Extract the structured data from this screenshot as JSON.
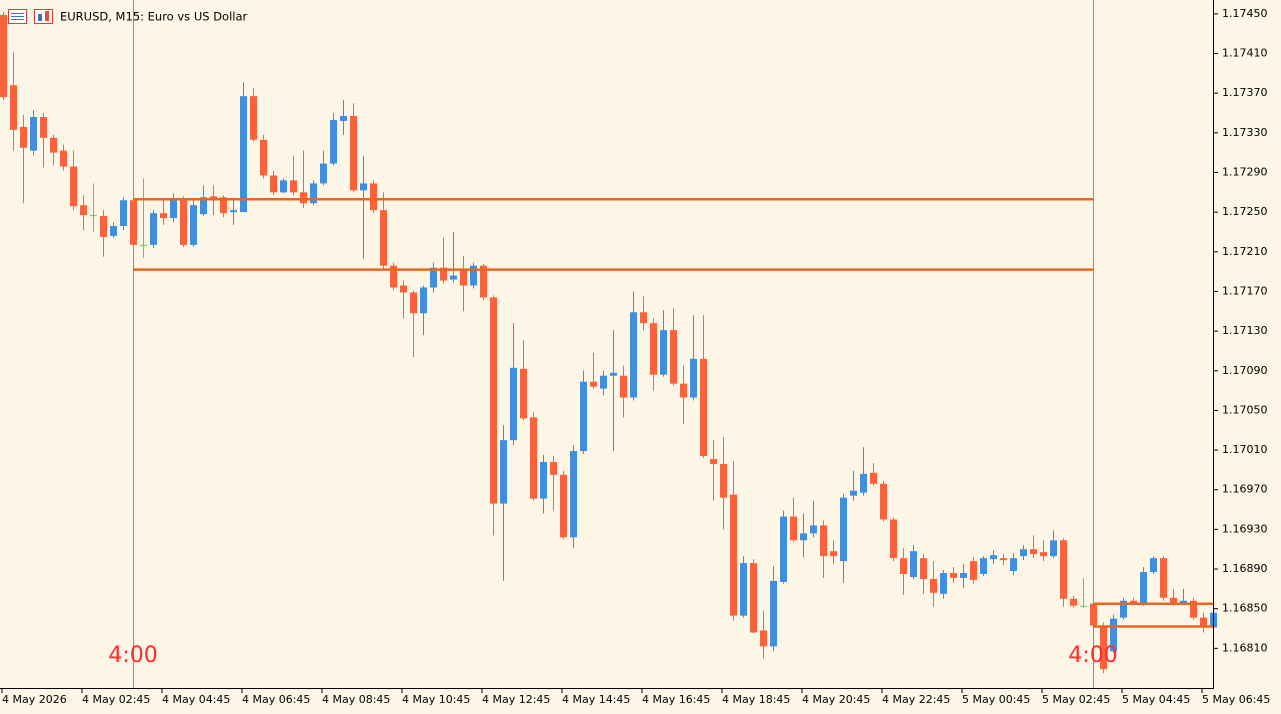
{
  "chart_data": {
    "type": "candlestick",
    "title": "EURUSD, M15:  Euro vs US Dollar",
    "open": [
      1.17449,
      1.17378,
      1.17336,
      1.17312,
      1.17346,
      1.17325,
      1.17312,
      1.17296,
      1.17257,
      1.17247,
      1.17246,
      1.17226,
      1.17236,
      1.17262,
      1.17217,
      1.17217,
      1.17249,
      1.17244,
      1.17262,
      1.17217,
      1.17248,
      1.17266,
      1.17265,
      1.1725,
      1.1725,
      1.17367,
      1.17323,
      1.17287,
      1.1727,
      1.17282,
      1.1727,
      1.17259,
      1.17279,
      1.17299,
      1.17342,
      1.17347,
      1.17272,
      1.17279,
      1.17252,
      1.17196,
      1.17176,
      1.17169,
      1.17148,
      1.17174,
      1.17194,
      1.17182,
      1.17192,
      1.17176,
      1.17196,
      1.17164,
      1.16956,
      1.1702,
      1.17092,
      1.17043,
      1.16961,
      1.16998,
      1.16985,
      1.16922,
      1.17009,
      1.17079,
      1.17072,
      1.17085,
      1.17085,
      1.17063,
      1.17149,
      1.17138,
      1.17086,
      1.17131,
      1.17077,
      1.17063,
      1.17102,
      1.17001,
      1.16996,
      1.16965,
      1.16843,
      1.16896,
      1.16828,
      1.16812,
      1.16877,
      1.16943,
      1.16919,
      1.16926,
      1.16934,
      1.16908,
      1.16898,
      1.16964,
      1.16967,
      1.16987,
      1.16976,
      1.1694,
      1.16901,
      1.16882,
      1.16901,
      1.1688,
      1.16865,
      1.16886,
      1.16881,
      1.16898,
      1.16885,
      1.169,
      1.16901,
      1.16888,
      1.16903,
      1.1691,
      1.16907,
      1.16903,
      1.16919,
      1.1686,
      1.16853,
      1.16855,
      1.16833,
      1.16807,
      1.16841,
      1.16858,
      1.16856,
      1.16887,
      1.16901,
      1.16861,
      1.16856,
      1.16858,
      1.16841,
      1.16831
    ],
    "high": [
      1.17452,
      1.17411,
      1.17348,
      1.17353,
      1.1735,
      1.17328,
      1.17318,
      1.17312,
      1.17267,
      1.17279,
      1.17252,
      1.1724,
      1.17265,
      1.17267,
      1.17284,
      1.17252,
      1.17262,
      1.17269,
      1.17266,
      1.17264,
      1.17277,
      1.17277,
      1.17267,
      1.17262,
      1.17381,
      1.17375,
      1.17328,
      1.17292,
      1.17284,
      1.17307,
      1.17312,
      1.17282,
      1.17312,
      1.1735,
      1.17363,
      1.1736,
      1.17307,
      1.17282,
      1.1727,
      1.17199,
      1.17181,
      1.17171,
      1.17176,
      1.17199,
      1.17224,
      1.1723,
      1.17206,
      1.17199,
      1.17198,
      1.17166,
      1.17035,
      1.17138,
      1.17121,
      1.17048,
      1.17005,
      1.17004,
      1.16989,
      1.17015,
      1.1709,
      1.17108,
      1.1709,
      1.17131,
      1.17095,
      1.1717,
      1.17165,
      1.17143,
      1.17151,
      1.17153,
      1.17095,
      1.17146,
      1.17146,
      1.1702,
      1.17023,
      1.16999,
      1.16903,
      1.169,
      1.16848,
      1.16893,
      1.16949,
      1.16962,
      1.16946,
      1.16959,
      1.16939,
      1.16919,
      1.16966,
      1.16989,
      1.17013,
      1.16997,
      1.16979,
      1.16942,
      1.16911,
      1.16914,
      1.16905,
      1.16898,
      1.16889,
      1.16892,
      1.16895,
      1.16902,
      1.16903,
      1.16909,
      1.16905,
      1.16906,
      1.16914,
      1.16924,
      1.16919,
      1.16929,
      1.16921,
      1.16863,
      1.16881,
      1.1686,
      1.16836,
      1.16844,
      1.16861,
      1.16861,
      1.16892,
      1.16903,
      1.16903,
      1.1687,
      1.1687,
      1.16861,
      1.16846,
      1.16849
    ],
    "low": [
      1.17363,
      1.17312,
      1.17259,
      1.17307,
      1.17295,
      1.17297,
      1.17292,
      1.17252,
      1.17232,
      1.1723,
      1.17205,
      1.17224,
      1.17232,
      1.17191,
      1.17204,
      1.17214,
      1.17237,
      1.1724,
      1.17215,
      1.17215,
      1.17246,
      1.17247,
      1.17245,
      1.17237,
      1.1725,
      1.17321,
      1.17284,
      1.17267,
      1.17269,
      1.17267,
      1.17254,
      1.17257,
      1.17277,
      1.17297,
      1.17328,
      1.1727,
      1.17203,
      1.17249,
      1.17193,
      1.17171,
      1.17143,
      1.17104,
      1.17126,
      1.17169,
      1.17178,
      1.17179,
      1.1715,
      1.17173,
      1.17161,
      1.16924,
      1.16878,
      1.17015,
      1.1704,
      1.16959,
      1.16946,
      1.16949,
      1.1692,
      1.16911,
      1.17006,
      1.17072,
      1.17065,
      1.17009,
      1.17043,
      1.1706,
      1.17131,
      1.1707,
      1.17084,
      1.17075,
      1.17036,
      1.1706,
      1.17002,
      1.16959,
      1.1693,
      1.16838,
      1.16841,
      1.16825,
      1.168,
      1.16807,
      1.16875,
      1.16917,
      1.16902,
      1.16922,
      1.16881,
      1.16895,
      1.16876,
      1.16959,
      1.16964,
      1.16974,
      1.16938,
      1.16898,
      1.16864,
      1.1688,
      1.16865,
      1.16852,
      1.1686,
      1.16876,
      1.16871,
      1.16875,
      1.16883,
      1.16895,
      1.16894,
      1.16884,
      1.16899,
      1.16901,
      1.16898,
      1.16901,
      1.16852,
      1.16851,
      1.16851,
      1.16785,
      1.16785,
      1.16805,
      1.16839,
      1.16854,
      1.16853,
      1.16885,
      1.16858,
      1.16853,
      1.16854,
      1.16839,
      1.16826,
      1.16828
    ],
    "close": [
      1.17366,
      1.17333,
      1.17315,
      1.17346,
      1.17325,
      1.1731,
      1.17296,
      1.17256,
      1.17247,
      1.17247,
      1.17225,
      1.17236,
      1.17262,
      1.17217,
      1.17217,
      1.17249,
      1.17244,
      1.17262,
      1.17217,
      1.17257,
      1.17265,
      1.17262,
      1.17249,
      1.17252,
      1.17367,
      1.17323,
      1.17287,
      1.1727,
      1.17282,
      1.1727,
      1.17259,
      1.17279,
      1.17299,
      1.17343,
      1.17347,
      1.17272,
      1.17279,
      1.17252,
      1.17196,
      1.17174,
      1.17169,
      1.17148,
      1.17174,
      1.17194,
      1.17181,
      1.17186,
      1.17176,
      1.17196,
      1.17164,
      1.16956,
      1.1702,
      1.17093,
      1.17042,
      1.16961,
      1.16998,
      1.16985,
      1.16922,
      1.17009,
      1.17079,
      1.17074,
      1.17085,
      1.17088,
      1.17063,
      1.17149,
      1.17138,
      1.17086,
      1.17131,
      1.17077,
      1.17063,
      1.17102,
      1.17004,
      1.16996,
      1.16962,
      1.16843,
      1.16896,
      1.16826,
      1.16812,
      1.16878,
      1.16943,
      1.16919,
      1.16926,
      1.16934,
      1.16903,
      1.16903,
      1.16962,
      1.16969,
      1.16986,
      1.16976,
      1.1694,
      1.16901,
      1.16885,
      1.16908,
      1.1688,
      1.16866,
      1.16886,
      1.16881,
      1.16886,
      1.16879,
      1.16901,
      1.16904,
      1.16899,
      1.16901,
      1.1691,
      1.16905,
      1.16903,
      1.16919,
      1.1686,
      1.16853,
      1.16853,
      1.16833,
      1.16789,
      1.1684,
      1.16858,
      1.16856,
      1.16887,
      1.16901,
      1.16861,
      1.16856,
      1.16858,
      1.16841,
      1.16831,
      1.16846
    ],
    "colors": {
      "up": "#3f8fdc",
      "down": "#f8623c",
      "doji": "#4cd84c"
    },
    "ylim": [
      1.1677,
      1.17464
    ],
    "yticks": [
      {
        "value": 1.1745,
        "label": "1.17450"
      },
      {
        "value": 1.1741,
        "label": "1.17410"
      },
      {
        "value": 1.1737,
        "label": "1.17370"
      },
      {
        "value": 1.1733,
        "label": "1.17330"
      },
      {
        "value": 1.1729,
        "label": "1.17290"
      },
      {
        "value": 1.1725,
        "label": "1.17250"
      },
      {
        "value": 1.1721,
        "label": "1.17210"
      },
      {
        "value": 1.1717,
        "label": "1.17170"
      },
      {
        "value": 1.1713,
        "label": "1.17130"
      },
      {
        "value": 1.1709,
        "label": "1.17090"
      },
      {
        "value": 1.1705,
        "label": "1.17050"
      },
      {
        "value": 1.1701,
        "label": "1.17010"
      },
      {
        "value": 1.1697,
        "label": "1.16970"
      },
      {
        "value": 1.1693,
        "label": "1.16930"
      },
      {
        "value": 1.1689,
        "label": "1.16890"
      },
      {
        "value": 1.1685,
        "label": "1.16850"
      },
      {
        "value": 1.1681,
        "label": "1.16810"
      }
    ],
    "xlim": [
      -0.3,
      121
    ],
    "xticks": [
      {
        "value": 0,
        "label": "4 May 2026"
      },
      {
        "value": 8,
        "label": "4 May 02:45"
      },
      {
        "value": 16,
        "label": "4 May 04:45"
      },
      {
        "value": 24,
        "label": "4 May 06:45"
      },
      {
        "value": 32,
        "label": "4 May 08:45"
      },
      {
        "value": 40,
        "label": "4 May 10:45"
      },
      {
        "value": 48,
        "label": "4 May 12:45"
      },
      {
        "value": 56,
        "label": "4 May 14:45"
      },
      {
        "value": 64,
        "label": "4 May 16:45"
      },
      {
        "value": 72,
        "label": "4 May 18:45"
      },
      {
        "value": 80,
        "label": "4 May 20:45"
      },
      {
        "value": 88,
        "label": "4 May 22:45"
      },
      {
        "value": 96,
        "label": "5 May 00:45"
      },
      {
        "value": 104,
        "label": "5 May 02:45"
      },
      {
        "value": 112,
        "label": "5 May 04:45"
      },
      {
        "value": 120,
        "label": "5 May 06:45"
      }
    ],
    "levels": [
      {
        "value": 1.17263,
        "from": 13,
        "to": 109,
        "color": "#e8661e"
      },
      {
        "value": 1.17192,
        "from": 13,
        "to": 109,
        "color": "#e8661e"
      },
      {
        "value": 1.16855,
        "from": 109,
        "to": 121,
        "color": "#e8661e"
      },
      {
        "value": 1.16832,
        "from": 109,
        "to": 121,
        "color": "#e8661e"
      }
    ],
    "sessions": [
      {
        "x": 13,
        "label": "4:00",
        "color": "#ff2a2a"
      },
      {
        "x": 109,
        "label": "4:00",
        "color": "#ff2a2a"
      }
    ]
  }
}
